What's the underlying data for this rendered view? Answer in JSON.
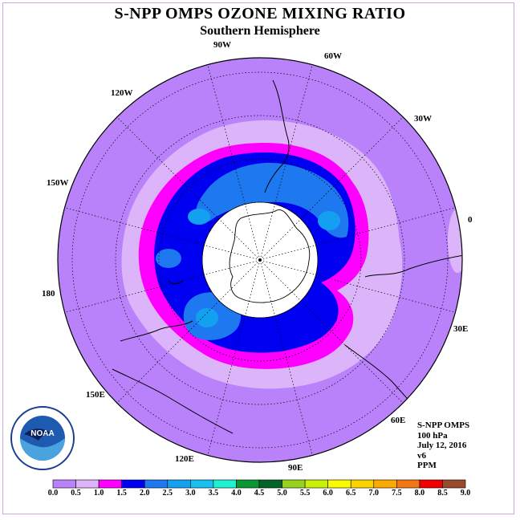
{
  "title": "S-NPP OMPS OZONE MIXING RATIO",
  "subtitle": "Southern Hemisphere",
  "logo_text": "NOAA",
  "longitude_labels": [
    "90W",
    "60W",
    "30W",
    "0",
    "30E",
    "60E",
    "90E",
    "120E",
    "150E",
    "180",
    "150W",
    "120W"
  ],
  "info": {
    "instrument": "S-NPP OMPS",
    "level": "100 hPa",
    "date": "July 12, 2016",
    "version": "v6",
    "units": "PPM"
  },
  "colorbar": {
    "ticks": [
      "0.0",
      "0.5",
      "1.0",
      "1.5",
      "2.0",
      "2.5",
      "3.0",
      "3.5",
      "4.0",
      "4.5",
      "5.0",
      "5.5",
      "6.0",
      "6.5",
      "7.0",
      "7.5",
      "8.0",
      "8.5",
      "9.0"
    ],
    "colors": [
      "#b982fb",
      "#dcb4fa",
      "#ff00ff",
      "#0000f0",
      "#1e78f0",
      "#14a0f0",
      "#18c0f0",
      "#1ef0d2",
      "#0a9632",
      "#056428",
      "#96d21e",
      "#c8f00a",
      "#fafa00",
      "#fad200",
      "#faaa00",
      "#f07814",
      "#f00000",
      "#964b2d"
    ]
  }
}
